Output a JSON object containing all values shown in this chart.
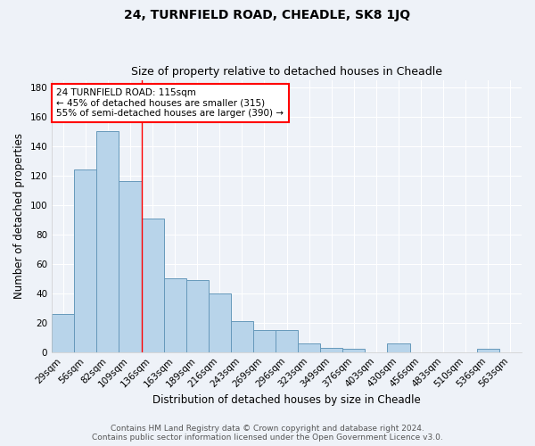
{
  "title": "24, TURNFIELD ROAD, CHEADLE, SK8 1JQ",
  "subtitle": "Size of property relative to detached houses in Cheadle",
  "xlabel": "Distribution of detached houses by size in Cheadle",
  "ylabel": "Number of detached properties",
  "categories": [
    "29sqm",
    "56sqm",
    "82sqm",
    "109sqm",
    "136sqm",
    "163sqm",
    "189sqm",
    "216sqm",
    "243sqm",
    "269sqm",
    "296sqm",
    "323sqm",
    "349sqm",
    "376sqm",
    "403sqm",
    "430sqm",
    "456sqm",
    "483sqm",
    "510sqm",
    "536sqm",
    "563sqm"
  ],
  "values": [
    26,
    124,
    150,
    116,
    91,
    50,
    49,
    40,
    21,
    15,
    15,
    6,
    3,
    2,
    0,
    6,
    0,
    0,
    0,
    2,
    0
  ],
  "bar_color": "#b8d4ea",
  "bar_edge_color": "#6699bb",
  "red_line_x": 3.5,
  "annotation_text": "24 TURNFIELD ROAD: 115sqm\n← 45% of detached houses are smaller (315)\n55% of semi-detached houses are larger (390) →",
  "annotation_box_color": "white",
  "annotation_box_edge_color": "red",
  "ylim": [
    0,
    185
  ],
  "yticks": [
    0,
    20,
    40,
    60,
    80,
    100,
    120,
    140,
    160,
    180
  ],
  "footer_line1": "Contains HM Land Registry data © Crown copyright and database right 2024.",
  "footer_line2": "Contains public sector information licensed under the Open Government Licence v3.0.",
  "background_color": "#eef2f8",
  "grid_color": "white",
  "title_fontsize": 10,
  "subtitle_fontsize": 9,
  "axis_label_fontsize": 8.5,
  "tick_fontsize": 7.5,
  "annotation_fontsize": 7.5,
  "footer_fontsize": 6.5
}
